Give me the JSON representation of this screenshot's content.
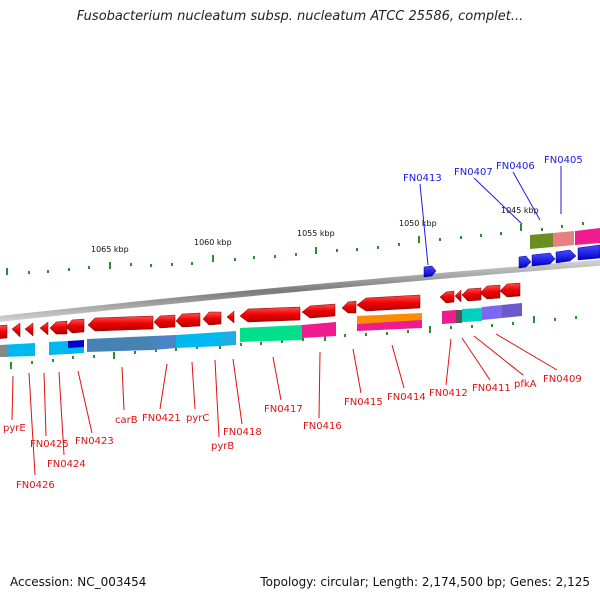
{
  "title": "Fusobacterium nucleatum subsp. nucleatum ATCC 25586, complet...",
  "footer": {
    "accession": "Accession: NC_003454",
    "stats": "Topology: circular; Length: 2,174,500 bp; Genes: 2,125"
  },
  "colors": {
    "forward": "#1a1ae6",
    "reverse": "#e01010",
    "backbone": "#8a8a8a",
    "ticks": "#2e8b2e"
  },
  "scale_labels": [
    "1065 kbp",
    "1060 kbp",
    "1055 kbp",
    "1050 kbp",
    "1045 kbp"
  ],
  "labels_top": [
    "FN0413",
    "FN0407",
    "FN0406",
    "FN0405"
  ],
  "labels_bottom": [
    "pyrE",
    "FN0426",
    "FN0425",
    "FN0424",
    "FN0423",
    "carB",
    "FN0421",
    "pyrC",
    "pyrB",
    "FN0418",
    "FN0417",
    "FN0416",
    "FN0415",
    "FN0414",
    "FN0412",
    "FN0411",
    "pfkA",
    "FN0409"
  ]
}
